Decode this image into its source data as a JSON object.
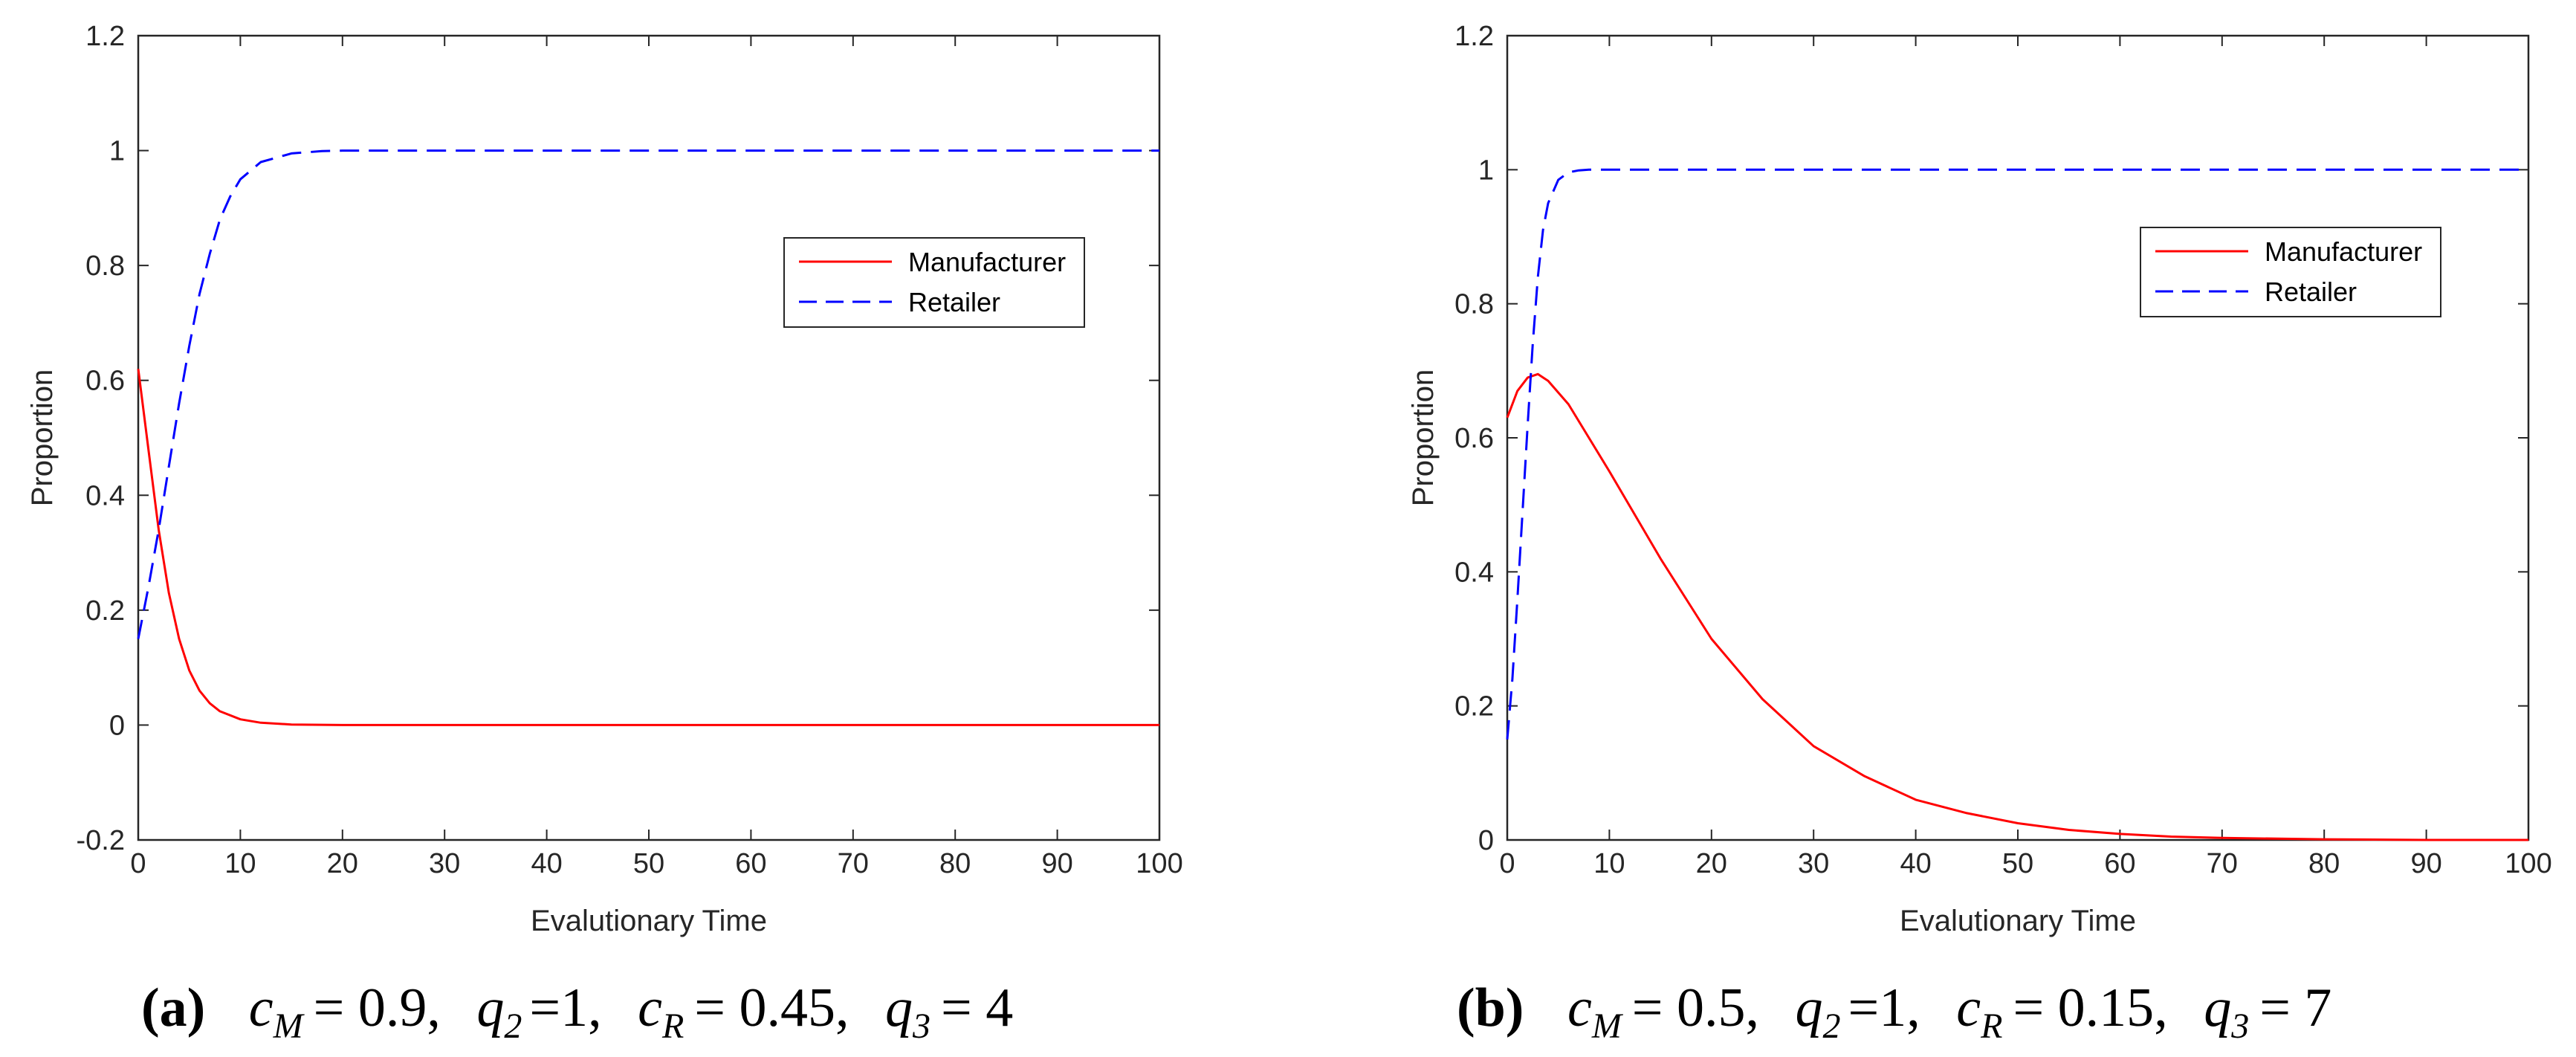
{
  "chart_data": [
    {
      "type": "line",
      "panel": "a",
      "xlabel": "Evalutionary Time",
      "ylabel": "Proportion",
      "xlim": [
        0,
        100
      ],
      "ylim": [
        -0.2,
        1.2
      ],
      "xticks": [
        0,
        10,
        20,
        30,
        40,
        50,
        60,
        70,
        80,
        90,
        100
      ],
      "yticks": [
        -0.2,
        0,
        0.2,
        0.4,
        0.6,
        0.8,
        1,
        1.2
      ],
      "xtick_labels": [
        "0",
        "10",
        "20",
        "30",
        "40",
        "50",
        "60",
        "70",
        "80",
        "90",
        "100"
      ],
      "ytick_labels": [
        "-0.2",
        "0",
        "0.2",
        "0.4",
        "0.6",
        "0.8",
        "1",
        "1.2"
      ],
      "legend_position": "upper-right",
      "series": [
        {
          "name": "Manufacturer",
          "color": "#ff0000",
          "style": "solid",
          "x": [
            0,
            1,
            2,
            3,
            4,
            5,
            6,
            7,
            8,
            10,
            12,
            15,
            20,
            30,
            50,
            70,
            100
          ],
          "y": [
            0.62,
            0.48,
            0.34,
            0.23,
            0.15,
            0.095,
            0.06,
            0.038,
            0.024,
            0.01,
            0.004,
            0.001,
            0.0,
            0.0,
            0.0,
            0.0,
            0.0
          ]
        },
        {
          "name": "Retailer",
          "color": "#0000ff",
          "style": "dashed",
          "x": [
            0,
            1,
            2,
            3,
            4,
            5,
            6,
            7,
            8,
            9,
            10,
            12,
            15,
            18,
            20,
            30,
            50,
            70,
            100
          ],
          "y": [
            0.15,
            0.24,
            0.34,
            0.45,
            0.56,
            0.66,
            0.75,
            0.82,
            0.88,
            0.92,
            0.95,
            0.98,
            0.995,
            0.999,
            1.0,
            1.0,
            1.0,
            1.0,
            1.0
          ]
        }
      ]
    },
    {
      "type": "line",
      "panel": "b",
      "xlabel": "Evalutionary Time",
      "ylabel": "Proportion",
      "xlim": [
        0,
        100
      ],
      "ylim": [
        0,
        1.2
      ],
      "xticks": [
        0,
        10,
        20,
        30,
        40,
        50,
        60,
        70,
        80,
        90,
        100
      ],
      "yticks": [
        0,
        0.2,
        0.4,
        0.6,
        0.8,
        1,
        1.2
      ],
      "xtick_labels": [
        "0",
        "10",
        "20",
        "30",
        "40",
        "50",
        "60",
        "70",
        "80",
        "90",
        "100"
      ],
      "ytick_labels": [
        "0",
        "0.2",
        "0.4",
        "0.6",
        "0.8",
        "1",
        "1.2"
      ],
      "legend_position": "upper-right",
      "series": [
        {
          "name": "Manufacturer",
          "color": "#ff0000",
          "style": "solid",
          "x": [
            0,
            1,
            2,
            3,
            4,
            6,
            8,
            10,
            15,
            20,
            25,
            30,
            35,
            40,
            45,
            50,
            55,
            60,
            65,
            70,
            80,
            90,
            100
          ],
          "y": [
            0.63,
            0.67,
            0.69,
            0.695,
            0.685,
            0.65,
            0.6,
            0.55,
            0.42,
            0.3,
            0.21,
            0.14,
            0.095,
            0.06,
            0.04,
            0.025,
            0.015,
            0.009,
            0.005,
            0.003,
            0.001,
            0.0,
            0.0
          ]
        },
        {
          "name": "Retailer",
          "color": "#0000ff",
          "style": "dashed",
          "x": [
            0,
            0.5,
            1,
            1.5,
            2,
            2.5,
            3,
            3.5,
            4,
            5,
            6,
            7,
            8,
            10,
            20,
            50,
            100
          ],
          "y": [
            0.15,
            0.24,
            0.36,
            0.49,
            0.62,
            0.74,
            0.84,
            0.91,
            0.95,
            0.985,
            0.996,
            0.999,
            1.0,
            1.0,
            1.0,
            1.0,
            1.0
          ]
        }
      ]
    }
  ],
  "captions": {
    "a": {
      "label": "(a)",
      "p1_var": "c",
      "p1_sub": "M",
      "p1_val": "= 0.9",
      "p2_var": "q",
      "p2_sub": "2",
      "p2_val": "=1",
      "p3_var": "c",
      "p3_sub": "R",
      "p3_val": "= 0.45",
      "p4_var": "q",
      "p4_sub": "3",
      "p4_val": "= 4",
      "sep": ","
    },
    "b": {
      "label": "(b)",
      "p1_var": "c",
      "p1_sub": "M",
      "p1_val": "= 0.5",
      "p2_var": "q",
      "p2_sub": "2",
      "p2_val": "=1",
      "p3_var": "c",
      "p3_sub": "R",
      "p3_val": "= 0.15",
      "p4_var": "q",
      "p4_sub": "3",
      "p4_val": "= 7",
      "sep": ","
    }
  }
}
